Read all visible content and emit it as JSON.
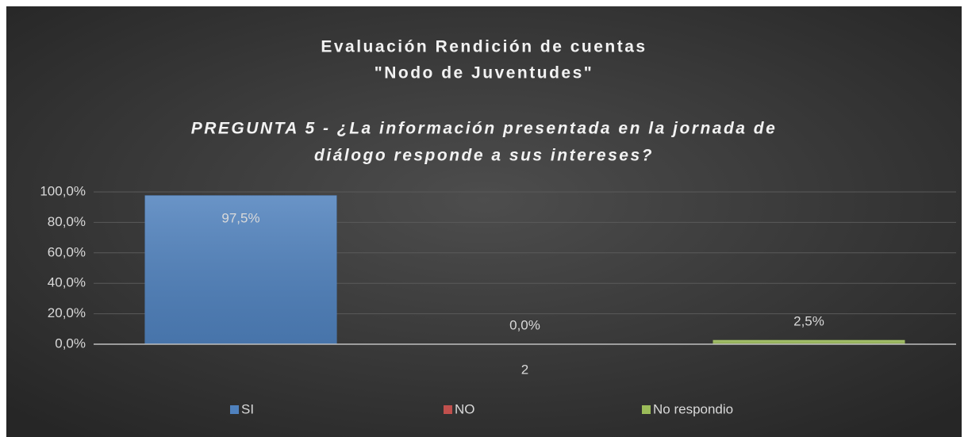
{
  "chart_data": {
    "type": "bar",
    "title": [
      "Evaluación Rendición de cuentas",
      "\"Nodo de Juventudes\""
    ],
    "subtitle": [
      "PREGUNTA 5 - ¿La información presentada en la jornada de",
      "diálogo responde a sus intereses?"
    ],
    "categories": [
      "2"
    ],
    "series": [
      {
        "name": "SI",
        "color": "#4f81bd",
        "values": [
          97.5
        ],
        "value_labels": [
          "97,5%"
        ]
      },
      {
        "name": "NO",
        "color": "#c0504d",
        "values": [
          0
        ],
        "value_labels": [
          "0,0%"
        ]
      },
      {
        "name": "No respondio",
        "color": "#9bbb59",
        "values": [
          2.5
        ],
        "value_labels": [
          "2,5%"
        ]
      }
    ],
    "ylim": [
      0,
      100
    ],
    "yticks": [
      {
        "value": 0,
        "label": "0,0%"
      },
      {
        "value": 20,
        "label": "20,0%"
      },
      {
        "value": 40,
        "label": "40,0%"
      },
      {
        "value": 60,
        "label": "60,0%"
      },
      {
        "value": 80,
        "label": "80,0%"
      },
      {
        "value": 100,
        "label": "100,0%"
      }
    ],
    "grid": true,
    "legend": "bottom"
  }
}
